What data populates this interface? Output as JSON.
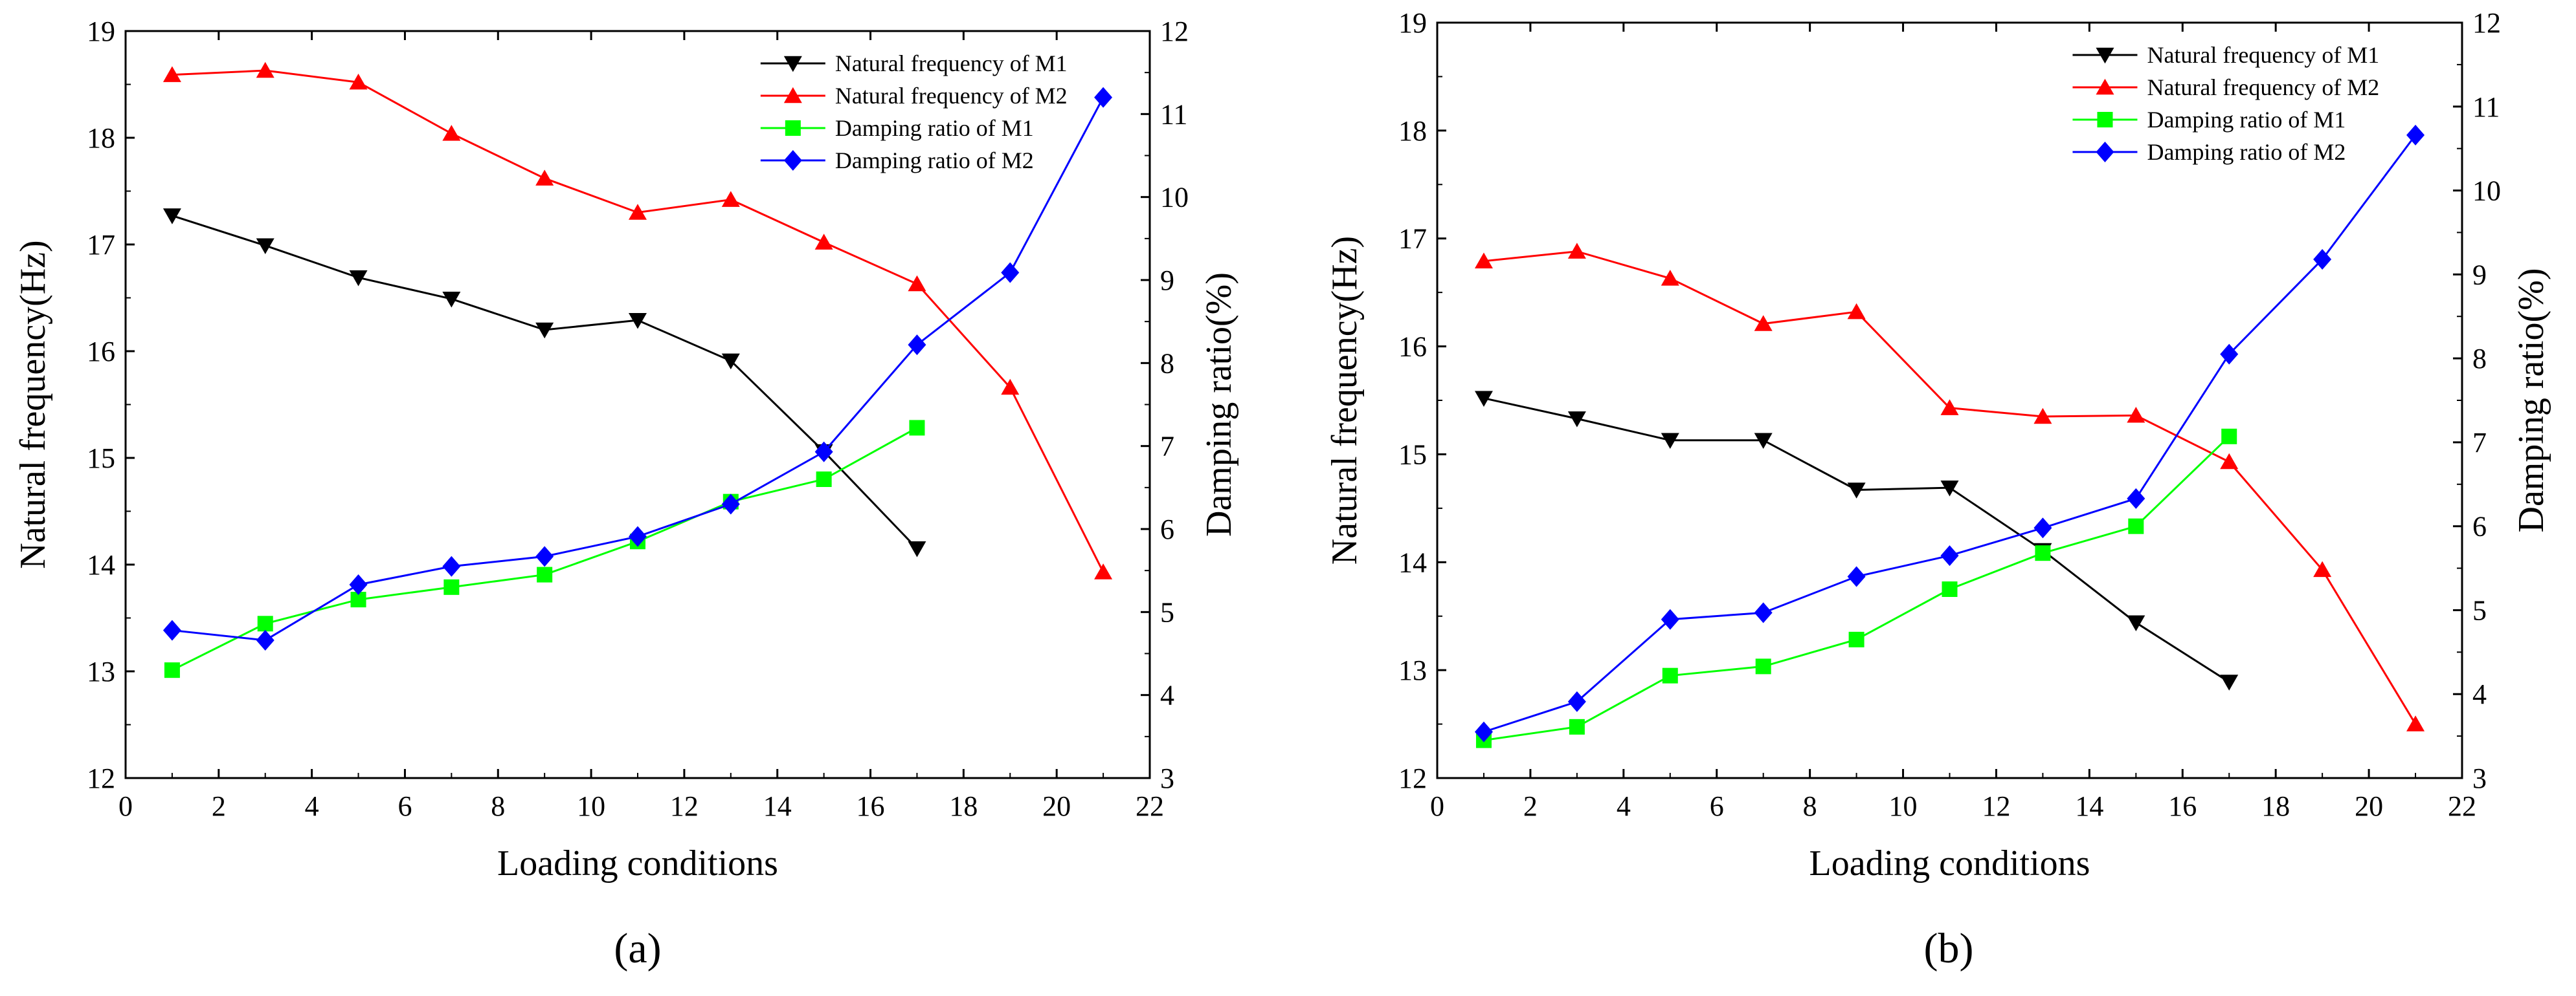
{
  "chart_data": [
    {
      "type": "line",
      "panel_label": "(a)",
      "xlabel": "Loading conditions",
      "ylabel_left": "Natural frequency(Hz)",
      "ylabel_right": "Damping ratio(%)",
      "xlim": [
        0,
        22
      ],
      "ylim_left": [
        12,
        19
      ],
      "ylim_right": [
        3,
        12
      ],
      "x_ticks": [
        "0",
        "2",
        "4",
        "6",
        "8",
        "10",
        "12",
        "14",
        "16",
        "18",
        "20",
        "22"
      ],
      "y_left_ticks": [
        "12",
        "13",
        "14",
        "15",
        "16",
        "17",
        "18",
        "19"
      ],
      "y_right_ticks": [
        "3",
        "4",
        "5",
        "6",
        "7",
        "8",
        "9",
        "10",
        "11",
        "12"
      ],
      "legend_position": "top-right",
      "series": [
        {
          "name": "Natural frequency of  M1",
          "axis": "left",
          "color": "#000000",
          "marker": "triangle-down",
          "x": [
            1,
            3,
            5,
            7,
            9,
            11,
            13,
            15,
            17
          ],
          "y": [
            17.27,
            16.99,
            16.69,
            16.49,
            16.2,
            16.29,
            15.91,
            15.06,
            14.15
          ]
        },
        {
          "name": "Natural frequency of  M2",
          "axis": "left",
          "color": "#ff0000",
          "marker": "triangle-up",
          "x": [
            1,
            3,
            5,
            7,
            9,
            11,
            13,
            15,
            17,
            19,
            21
          ],
          "y": [
            18.59,
            18.63,
            18.52,
            18.04,
            17.62,
            17.3,
            17.42,
            17.02,
            16.63,
            15.66,
            13.93
          ]
        },
        {
          "name": "Damping ratio of  M1",
          "axis": "right",
          "color": "#00ff00",
          "marker": "square",
          "x": [
            1,
            3,
            5,
            7,
            9,
            11,
            13,
            15,
            17
          ],
          "y": [
            4.3,
            4.86,
            5.15,
            5.3,
            5.45,
            5.85,
            6.33,
            6.6,
            7.22
          ]
        },
        {
          "name": "Damping ratio of  M2",
          "axis": "right",
          "color": "#0000ff",
          "marker": "diamond",
          "x": [
            1,
            3,
            5,
            7,
            9,
            11,
            13,
            15,
            17,
            19,
            21
          ],
          "y": [
            4.78,
            4.66,
            5.33,
            5.55,
            5.67,
            5.91,
            6.3,
            6.93,
            8.22,
            9.09,
            11.2
          ]
        }
      ]
    },
    {
      "type": "line",
      "panel_label": "(b)",
      "xlabel": "Loading conditions",
      "ylabel_left": "Natural frequency(Hz)",
      "ylabel_right": "Damping ratio(%)",
      "xlim": [
        0,
        22
      ],
      "ylim_left": [
        12,
        19
      ],
      "ylim_right": [
        3,
        12
      ],
      "x_ticks": [
        "0",
        "2",
        "4",
        "6",
        "8",
        "10",
        "12",
        "14",
        "16",
        "18",
        "20",
        "22"
      ],
      "y_left_ticks": [
        "12",
        "13",
        "14",
        "15",
        "16",
        "17",
        "18",
        "19"
      ],
      "y_right_ticks": [
        "3",
        "4",
        "5",
        "6",
        "7",
        "8",
        "9",
        "10",
        "11",
        "12"
      ],
      "legend_position": "top-right",
      "series": [
        {
          "name": "Natural frequency of  M1",
          "axis": "left",
          "color": "#000000",
          "marker": "triangle-down",
          "x": [
            1,
            3,
            5,
            7,
            9,
            11,
            13,
            15,
            17
          ],
          "y": [
            15.52,
            15.33,
            15.13,
            15.13,
            14.67,
            14.69,
            14.11,
            13.44,
            12.89
          ]
        },
        {
          "name": "Natural frequency of  M2",
          "axis": "left",
          "color": "#ff0000",
          "marker": "triangle-up",
          "x": [
            1,
            3,
            5,
            7,
            9,
            11,
            13,
            15,
            17,
            19,
            21
          ],
          "y": [
            16.79,
            16.88,
            16.63,
            16.21,
            16.32,
            15.43,
            15.35,
            15.36,
            14.93,
            13.93,
            12.5
          ]
        },
        {
          "name": "Damping ratio of  M1",
          "axis": "right",
          "color": "#00ff00",
          "marker": "square",
          "x": [
            1,
            3,
            5,
            7,
            9,
            11,
            13,
            15,
            17
          ],
          "y": [
            3.45,
            3.61,
            4.22,
            4.33,
            4.65,
            5.25,
            5.68,
            6.0,
            7.07
          ]
        },
        {
          "name": "Damping ratio of  M2",
          "axis": "right",
          "color": "#0000ff",
          "marker": "diamond",
          "x": [
            1,
            3,
            5,
            7,
            9,
            11,
            13,
            15,
            17,
            19,
            21
          ],
          "y": [
            3.55,
            3.91,
            4.89,
            4.97,
            5.4,
            5.65,
            5.98,
            6.33,
            8.05,
            9.18,
            10.66
          ]
        }
      ]
    }
  ]
}
